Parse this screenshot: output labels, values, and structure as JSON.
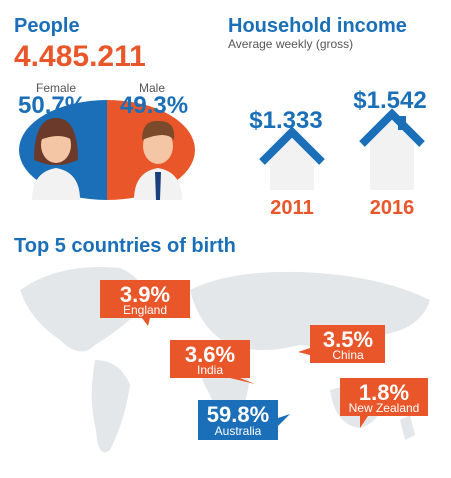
{
  "people": {
    "title": "People",
    "total": "4.485.211",
    "female_label": "Female",
    "female_value": "50.7%",
    "male_label": "Male",
    "male_value": "49.3%"
  },
  "income": {
    "title": "Household income",
    "subtitle": "Average weekly (gross)",
    "items": [
      {
        "value": "$1.333",
        "year": "2011"
      },
      {
        "value": "$1.542",
        "year": "2016"
      }
    ]
  },
  "countries": {
    "title": "Top 5 countries of birth",
    "items": [
      {
        "value": "3.9%",
        "name": "England"
      },
      {
        "value": "3.6%",
        "name": "India"
      },
      {
        "value": "3.5%",
        "name": "China"
      },
      {
        "value": "1.8%",
        "name": "New Zealand"
      },
      {
        "value": "59.8%",
        "name": "Australia"
      }
    ]
  }
}
